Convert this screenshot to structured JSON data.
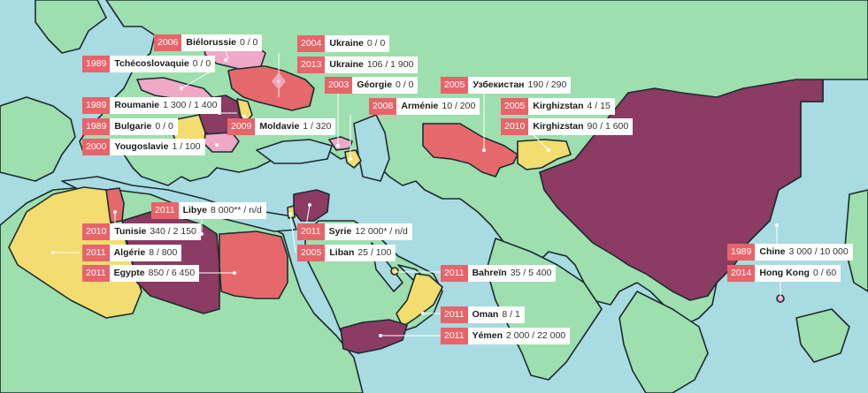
{
  "colors": {
    "sea": "#a8dbe2",
    "land": "#9ddfae",
    "border": "#1e2b30",
    "maroon": "#8c3b63",
    "red": "#e5696a",
    "yellow": "#f3dc70",
    "pink": "#f0a8c8",
    "label_year_bg": "#e6646a"
  },
  "icons": {
    "marker": "location-dot-icon"
  },
  "events": [
    {
      "id": "bielorussie",
      "year": "2006",
      "name": "Biélorussie",
      "stats": "0 / 0"
    },
    {
      "id": "tchecoslovaquie",
      "year": "1989",
      "name": "Tchécoslovaquie",
      "stats": "0 / 0"
    },
    {
      "id": "roumanie",
      "year": "1989",
      "name": "Roumanie",
      "stats": "1 300 / 1 400"
    },
    {
      "id": "bulgarie",
      "year": "1989",
      "name": "Bulgarie",
      "stats": "0 / 0"
    },
    {
      "id": "yougoslavie",
      "year": "2000",
      "name": "Yougoslavie",
      "stats": "1 / 100"
    },
    {
      "id": "moldavie",
      "year": "2009",
      "name": "Moldavie",
      "stats": "1 / 320"
    },
    {
      "id": "ukraine-2004",
      "year": "2004",
      "name": "Ukraine",
      "stats": "0 / 0"
    },
    {
      "id": "ukraine-2013",
      "year": "2013",
      "name": "Ukraine",
      "stats": "106 / 1 900"
    },
    {
      "id": "georgie",
      "year": "2003",
      "name": "Géorgie",
      "stats": "0 / 0"
    },
    {
      "id": "armenie",
      "year": "2008",
      "name": "Arménie",
      "stats": "10 / 200"
    },
    {
      "id": "ouzbekistan",
      "year": "2005",
      "name": "Узбекистан",
      "stats": "190 / 290"
    },
    {
      "id": "kirghizstan-2005",
      "year": "2005",
      "name": "Kirghizstan",
      "stats": "4 / 15"
    },
    {
      "id": "kirghizstan-2010",
      "year": "2010",
      "name": "Kirghizstan",
      "stats": "90 / 1 600"
    },
    {
      "id": "libye",
      "year": "2011",
      "name": "Libye",
      "stats": "8 000** / n/d"
    },
    {
      "id": "tunisie",
      "year": "2010",
      "name": "Tunisie",
      "stats": "340 / 2 150"
    },
    {
      "id": "algerie",
      "year": "2011",
      "name": "Algérie",
      "stats": "8 / 800"
    },
    {
      "id": "egypte",
      "year": "2011",
      "name": "Egypte",
      "stats": "850 / 6 450"
    },
    {
      "id": "syrie",
      "year": "2011",
      "name": "Syrie",
      "stats": "12 000* / n/d"
    },
    {
      "id": "liban",
      "year": "2005",
      "name": "Liban",
      "stats": "25 / 100"
    },
    {
      "id": "bahrein",
      "year": "2011",
      "name": "Bahreïn",
      "stats": "35 / 5 400"
    },
    {
      "id": "oman",
      "year": "2011",
      "name": "Oman",
      "stats": "8 / 1"
    },
    {
      "id": "yemen",
      "year": "2011",
      "name": "Yémen",
      "stats": "2 000 / 22 000"
    },
    {
      "id": "chine",
      "year": "1989",
      "name": "Chine",
      "stats": "3 000 / 10 000"
    },
    {
      "id": "hongkong",
      "year": "2014",
      "name": "Hong Kong",
      "stats": "0 / 60"
    }
  ]
}
